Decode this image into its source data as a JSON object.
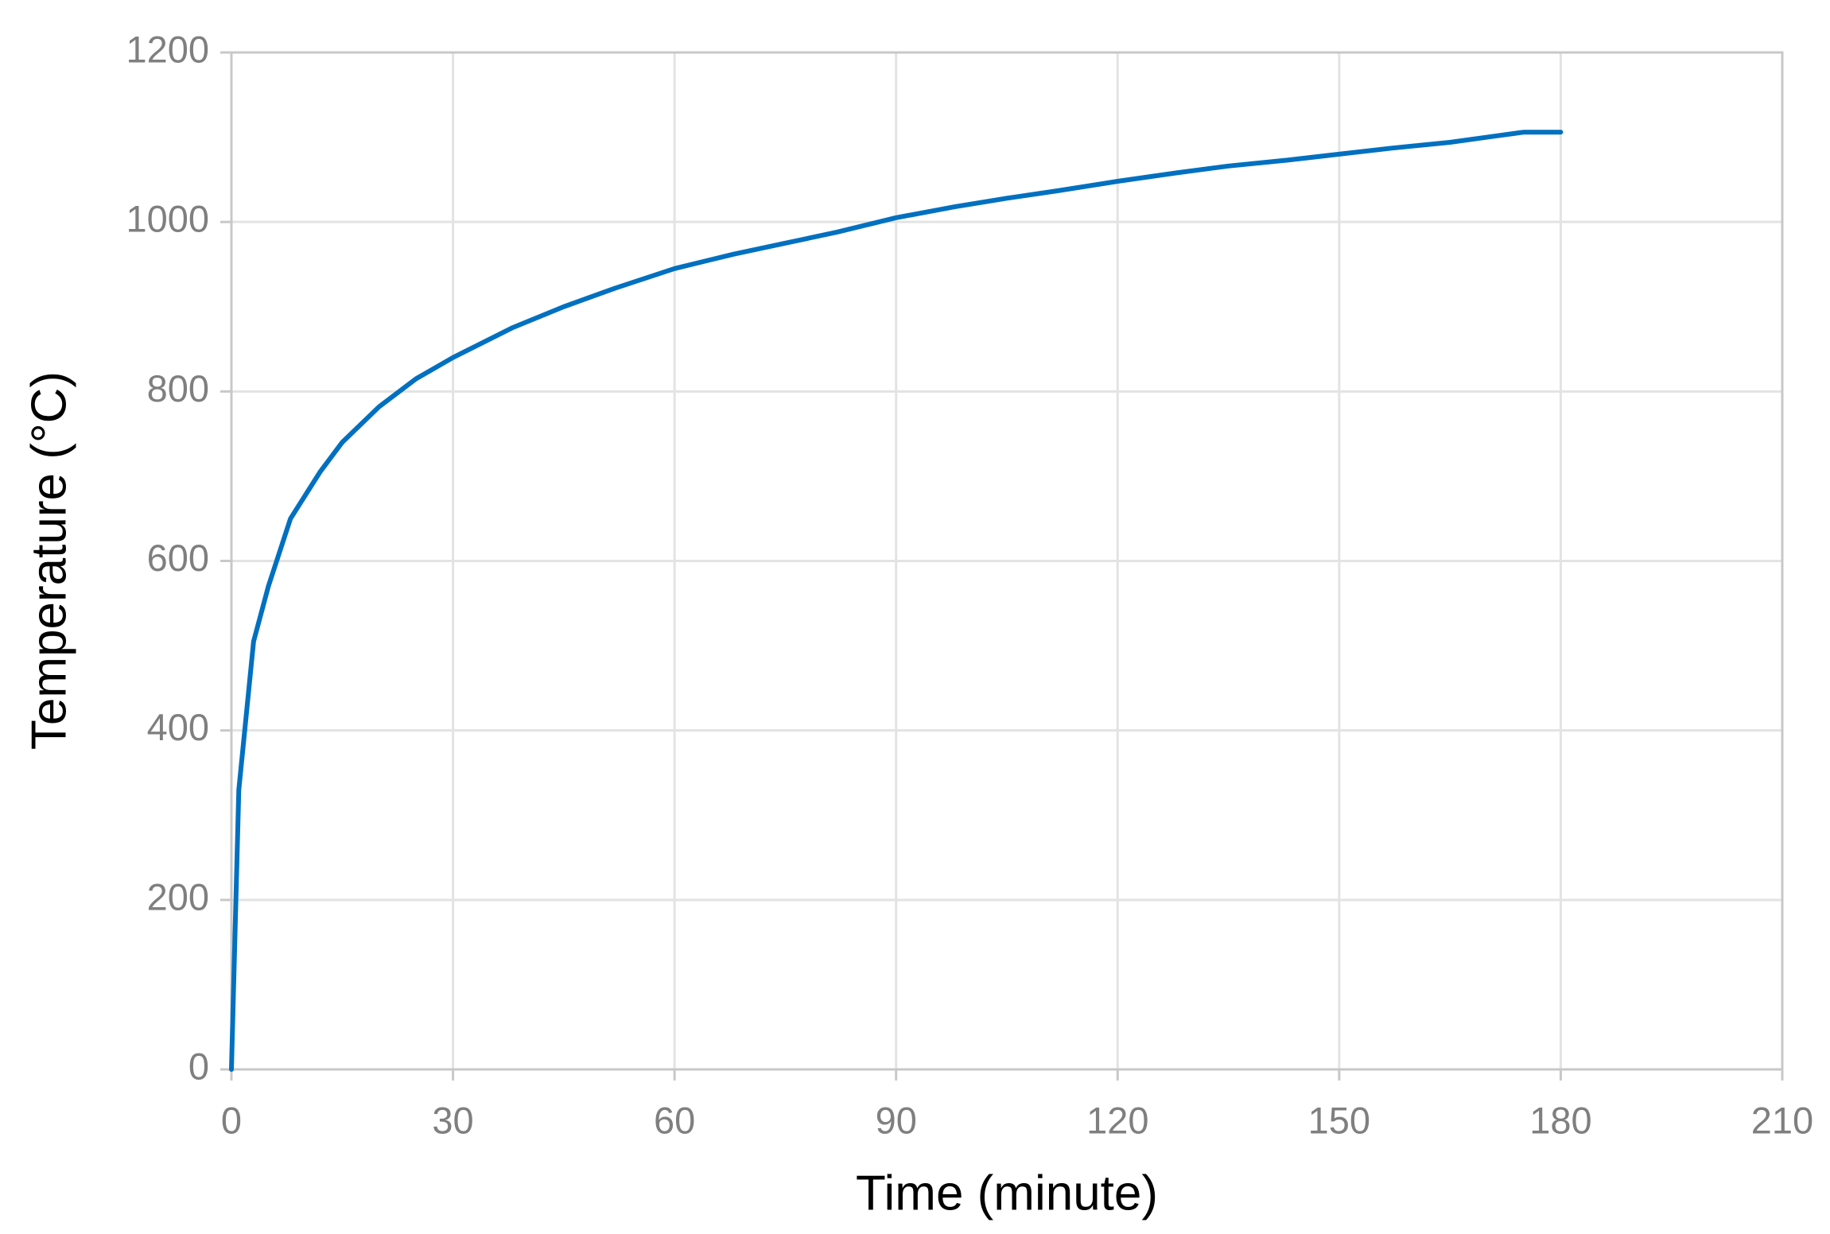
{
  "chart_data": {
    "type": "line",
    "x_label": "Time  (minute)",
    "y_label": "Temperature  (°C)",
    "x": [
      0,
      1,
      3,
      5,
      8,
      12,
      15,
      20,
      25,
      30,
      38,
      45,
      52,
      60,
      68,
      75,
      82,
      90,
      98,
      105,
      112,
      120,
      128,
      135,
      143,
      150,
      157,
      165,
      170,
      175,
      180
    ],
    "series": [
      {
        "name": "Temperature",
        "color": "#0070c0",
        "values": [
          0,
          330,
          505,
          570,
          650,
          705,
          740,
          782,
          815,
          840,
          875,
          900,
          922,
          945,
          962,
          975,
          988,
          1005,
          1018,
          1028,
          1037,
          1048,
          1058,
          1066,
          1073,
          1080,
          1087,
          1094,
          1100,
          1106,
          1106
        ]
      }
    ],
    "xlim": [
      0,
      210
    ],
    "xticks": [
      0,
      30,
      60,
      90,
      120,
      150,
      180,
      210
    ],
    "ylim": [
      0,
      1200
    ],
    "yticks": [
      0,
      200,
      400,
      600,
      800,
      1000,
      1200
    ],
    "grid": true
  }
}
